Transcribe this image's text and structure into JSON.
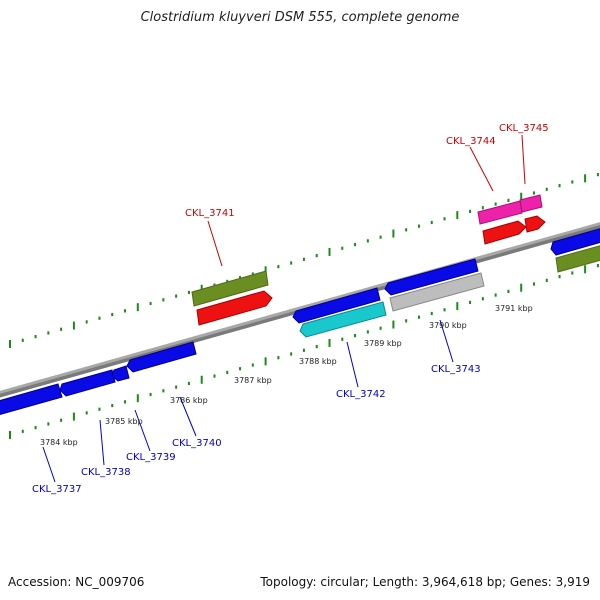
{
  "title": "Clostridium kluyveri DSM 555, complete genome",
  "footer": {
    "accession": "Accession: NC_009706",
    "topology": "Topology: circular; Length: 3,964,618 bp; Genes: 3,919"
  },
  "colors": {
    "backbone": "#8c8c8c",
    "tick": "#1a8a1a",
    "label_forward": "#cc0000",
    "label_reverse": "#0000cc",
    "gene_blue": "#0a0ae6",
    "gene_red": "#ee1111",
    "gene_olive": "#6b8e23",
    "gene_magenta": "#ee22aa",
    "gene_cyan": "#18c8cc",
    "gene_gray": "#bdbdbd"
  },
  "kbp_labels": [
    "3784 kbp",
    "3785 kbp",
    "3786 kbp",
    "3787 kbp",
    "3788 kbp",
    "3789 kbp",
    "3790 kbp",
    "3791 kbp"
  ],
  "gene_labels_top": [
    "CKL_3741",
    "CKL_3744",
    "CKL_3745"
  ],
  "gene_labels_bottom": [
    "CKL_3737",
    "CKL_3738",
    "CKL_3739",
    "CKL_3740",
    "CKL_3742",
    "CKL_3743"
  ]
}
